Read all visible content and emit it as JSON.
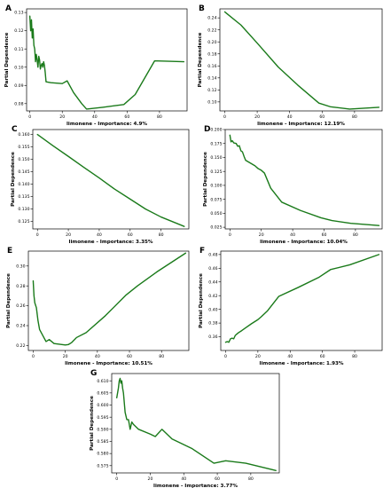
{
  "style": {
    "line_color": "#1a7a1a"
  },
  "chart_data": [
    {
      "panel": "A",
      "type": "line",
      "xlabel": "limonene - Importance: 4.9%",
      "ylabel": "Partial Dependence",
      "xlim": [
        -2,
        97
      ],
      "ylim": [
        0.076,
        0.132
      ],
      "xticks": [
        0,
        20,
        40,
        60,
        80
      ],
      "yticks": [
        0.08,
        0.09,
        0.1,
        0.11,
        0.12,
        0.13
      ],
      "ytick_labels": [
        "0.08",
        "0.09",
        "0.10",
        "0.11",
        "0.12",
        "0.13"
      ],
      "x": [
        0,
        0.5,
        1,
        1.5,
        2,
        2.5,
        3,
        3.5,
        4,
        4.5,
        5,
        5.5,
        6,
        6.5,
        7,
        7.5,
        8,
        8.5,
        9,
        9.5,
        10,
        13,
        20,
        23,
        27,
        32,
        35,
        45,
        58,
        65,
        77,
        95
      ],
      "y": [
        0.128,
        0.12,
        0.126,
        0.116,
        0.121,
        0.112,
        0.11,
        0.103,
        0.107,
        0.104,
        0.1,
        0.106,
        0.104,
        0.099,
        0.101,
        0.102,
        0.1,
        0.103,
        0.101,
        0.097,
        0.092,
        0.0915,
        0.091,
        0.0925,
        0.086,
        0.08,
        0.077,
        0.078,
        0.0795,
        0.085,
        0.1035,
        0.103
      ]
    },
    {
      "panel": "B",
      "type": "line",
      "xlabel": "limonene - Importance: 12.19%",
      "ylabel": "Partial Dependence",
      "xlim": [
        -3,
        97
      ],
      "ylim": [
        0.085,
        0.255
      ],
      "xticks": [
        0,
        20,
        40,
        60,
        80
      ],
      "yticks": [
        0.1,
        0.12,
        0.14,
        0.16,
        0.18,
        0.2,
        0.22,
        0.24
      ],
      "ytick_labels": [
        "0.10",
        "0.12",
        "0.14",
        "0.16",
        "0.18",
        "0.20",
        "0.22",
        "0.24"
      ],
      "x": [
        0,
        10,
        20,
        33,
        45,
        58,
        65,
        77,
        95
      ],
      "y": [
        0.25,
        0.228,
        0.198,
        0.158,
        0.128,
        0.098,
        0.092,
        0.088,
        0.091
      ]
    },
    {
      "panel": "C",
      "type": "line",
      "xlabel": "limonene - Importance: 3.35%",
      "ylabel": "Partial Dependence",
      "xlim": [
        -3,
        98
      ],
      "ylim": [
        0.122,
        0.162
      ],
      "xticks": [
        0,
        20,
        40,
        60,
        80
      ],
      "yticks": [
        0.125,
        0.13,
        0.135,
        0.14,
        0.145,
        0.15,
        0.155,
        0.16
      ],
      "ytick_labels": [
        "0.125",
        "0.130",
        "0.135",
        "0.140",
        "0.145",
        "0.150",
        "0.155",
        "0.160"
      ],
      "x": [
        0,
        10,
        20,
        30,
        40,
        50,
        60,
        70,
        80,
        95
      ],
      "y": [
        0.16,
        0.1555,
        0.1512,
        0.1468,
        0.1425,
        0.138,
        0.134,
        0.13,
        0.1268,
        0.123
      ]
    },
    {
      "panel": "D",
      "type": "line",
      "xlabel": "limonene - Importance: 10.04%",
      "ylabel": "Partial Dependence",
      "xlim": [
        -3,
        97
      ],
      "ylim": [
        0.022,
        0.2
      ],
      "xticks": [
        0,
        20,
        40,
        60,
        80
      ],
      "yticks": [
        0.025,
        0.05,
        0.075,
        0.1,
        0.125,
        0.15,
        0.175,
        0.2
      ],
      "ytick_labels": [
        "0.025",
        "0.050",
        "0.075",
        "0.100",
        "0.125",
        "0.150",
        "0.175",
        "0.200"
      ],
      "x": [
        0,
        0.7,
        1.5,
        2.5,
        4,
        5,
        6,
        7,
        8,
        9,
        10,
        13,
        16,
        18,
        20,
        22,
        26,
        33,
        45,
        58,
        65,
        77,
        95
      ],
      "y": [
        0.19,
        0.178,
        0.18,
        0.176,
        0.175,
        0.17,
        0.171,
        0.162,
        0.16,
        0.152,
        0.145,
        0.14,
        0.135,
        0.13,
        0.127,
        0.122,
        0.095,
        0.07,
        0.055,
        0.042,
        0.037,
        0.032,
        0.028
      ]
    },
    {
      "panel": "E",
      "type": "line",
      "xlabel": "limonene - Importance: 10.51%",
      "ylabel": "Partial Dependence",
      "xlim": [
        -3,
        97
      ],
      "ylim": [
        0.215,
        0.315
      ],
      "xticks": [
        0,
        20,
        40,
        60,
        80
      ],
      "yticks": [
        0.22,
        0.24,
        0.26,
        0.28,
        0.3
      ],
      "ytick_labels": [
        "0.22",
        "0.24",
        "0.26",
        "0.28",
        "0.30"
      ],
      "x": [
        0,
        0.5,
        1,
        2,
        3,
        4,
        6,
        8,
        10,
        13,
        20,
        22,
        24,
        27,
        33,
        45,
        58,
        65,
        77,
        95
      ],
      "y": [
        0.285,
        0.27,
        0.263,
        0.258,
        0.245,
        0.236,
        0.23,
        0.224,
        0.226,
        0.222,
        0.2205,
        0.221,
        0.223,
        0.228,
        0.233,
        0.25,
        0.271,
        0.28,
        0.294,
        0.313
      ]
    },
    {
      "panel": "F",
      "type": "line",
      "xlabel": "limonene - Importance: 1.93%",
      "ylabel": "Partial Dependence",
      "xlim": [
        -3,
        97
      ],
      "ylim": [
        0.34,
        0.485
      ],
      "xticks": [
        0,
        20,
        40,
        60,
        80
      ],
      "yticks": [
        0.36,
        0.38,
        0.4,
        0.42,
        0.44,
        0.46,
        0.48
      ],
      "ytick_labels": [
        "0.36",
        "0.38",
        "0.40",
        "0.42",
        "0.44",
        "0.46",
        "0.48"
      ],
      "x": [
        0,
        1,
        2,
        3,
        4,
        5,
        6,
        7,
        8,
        10,
        13,
        16,
        20,
        22,
        26,
        33,
        45,
        58,
        65,
        77,
        95
      ],
      "y": [
        0.352,
        0.353,
        0.352,
        0.357,
        0.358,
        0.357,
        0.362,
        0.364,
        0.366,
        0.369,
        0.374,
        0.379,
        0.385,
        0.389,
        0.398,
        0.419,
        0.432,
        0.447,
        0.458,
        0.465,
        0.48
      ]
    },
    {
      "panel": "G",
      "type": "line",
      "xlabel": "limonene - Importance: 3.77%",
      "ylabel": "Partial Dependence",
      "xlim": [
        -3,
        97
      ],
      "ylim": [
        0.572,
        0.613
      ],
      "xticks": [
        0,
        20,
        40,
        60,
        80
      ],
      "yticks": [
        0.575,
        0.58,
        0.585,
        0.59,
        0.595,
        0.6,
        0.605,
        0.61
      ],
      "ytick_labels": [
        "0.575",
        "0.580",
        "0.585",
        "0.590",
        "0.595",
        "0.600",
        "0.605",
        "0.610"
      ],
      "x": [
        0,
        0.5,
        1,
        1.5,
        2,
        2.5,
        3,
        3.5,
        4,
        5,
        6,
        7,
        8,
        9,
        10,
        13,
        20,
        23,
        27,
        33,
        45,
        58,
        65,
        77,
        95
      ],
      "y": [
        0.603,
        0.605,
        0.607,
        0.61,
        0.611,
        0.609,
        0.61,
        0.607,
        0.605,
        0.597,
        0.594,
        0.594,
        0.59,
        0.593,
        0.592,
        0.59,
        0.588,
        0.587,
        0.59,
        0.586,
        0.582,
        0.576,
        0.577,
        0.576,
        0.573
      ]
    }
  ]
}
